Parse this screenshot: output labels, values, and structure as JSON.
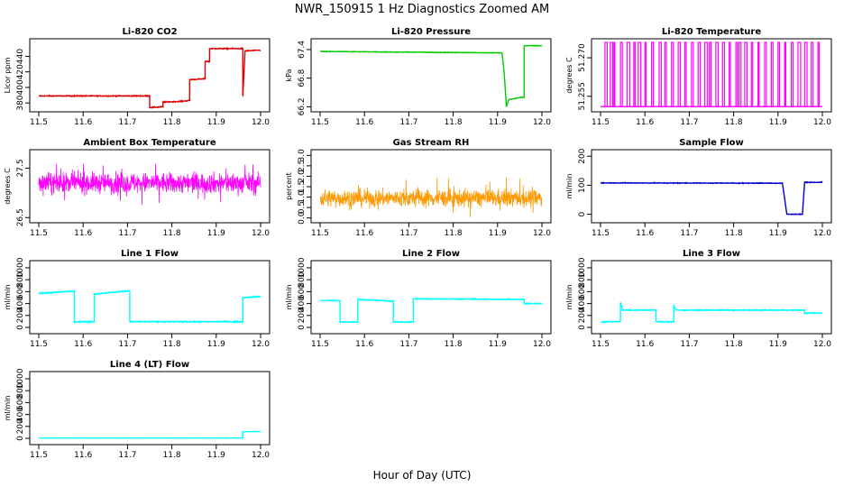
{
  "figure": {
    "title": "NWR_150915  1 Hz Diagnostics Zoomed AM",
    "xlabel": "Hour of Day (UTC)"
  },
  "chart_data": [
    {
      "type": "line",
      "title": "Li-820 CO2",
      "ylabel": "Licor ppm",
      "color": "#e00000",
      "xlim": [
        11.5,
        12.0
      ],
      "xticks": [
        "11.5",
        "11.6",
        "11.7",
        "11.8",
        "11.9",
        "12.0"
      ],
      "ylim": [
        372,
        458
      ],
      "yticks": [
        380,
        400,
        420,
        440
      ],
      "series": [
        {
          "x": [
            11.5,
            11.75,
            11.75,
            11.78,
            11.78,
            11.82,
            11.82,
            11.84,
            11.84,
            11.875,
            11.875,
            11.885,
            11.885,
            11.96,
            11.96,
            11.965,
            11.965,
            12.0
          ],
          "y": [
            389,
            389,
            374,
            375,
            381,
            382,
            382,
            383,
            410,
            411,
            434,
            433,
            450,
            450,
            388,
            448,
            447,
            448
          ],
          "noise": 1.0
        }
      ]
    },
    {
      "type": "line",
      "title": "Li-820 Pressure",
      "ylabel": "kPa",
      "color": "#00cc00",
      "xlim": [
        11.5,
        12.0
      ],
      "xticks": [
        "11.5",
        "11.6",
        "11.7",
        "11.8",
        "11.9",
        "12.0"
      ],
      "ylim": [
        66.15,
        67.55
      ],
      "yticks": [
        66.2,
        66.8,
        67.4
      ],
      "ytick_labels": [
        "66.2",
        "66.8",
        "67.4"
      ],
      "series": [
        {
          "x": [
            11.5,
            11.91,
            11.915,
            11.92,
            11.925,
            11.955,
            11.96,
            11.96,
            12.0
          ],
          "y": [
            67.36,
            67.33,
            66.9,
            66.2,
            66.35,
            66.4,
            66.4,
            67.48,
            67.48
          ],
          "noise": 0.01
        }
      ]
    },
    {
      "type": "spikes",
      "title": "Li-820 Temperature",
      "ylabel": "degrees C",
      "color": "#ff00ff",
      "xlim": [
        11.5,
        12.0
      ],
      "xticks": [
        "11.5",
        "11.6",
        "11.7",
        "11.8",
        "11.9",
        "12.0"
      ],
      "ylim": [
        51.25,
        51.276
      ],
      "yticks": [
        51.255,
        51.27
      ],
      "ytick_labels": [
        "51.255",
        "51.270"
      ],
      "base": 51.251,
      "top": 51.276,
      "spike_x": [
        11.51,
        11.522,
        11.53,
        11.545,
        11.56,
        11.575,
        11.585,
        11.6,
        11.615,
        11.632,
        11.645,
        11.66,
        11.675,
        11.69,
        11.705,
        11.72,
        11.735,
        11.745,
        11.76,
        11.775,
        11.79,
        11.805,
        11.812,
        11.825,
        11.84,
        11.855,
        11.87,
        11.885,
        11.9,
        11.915,
        11.93,
        11.945,
        11.96,
        11.975,
        11.99
      ]
    },
    {
      "type": "noise",
      "title": "Ambient Box Temperature",
      "ylabel": "degrees C",
      "color": "#ff00ff",
      "xlim": [
        11.5,
        12.0
      ],
      "xticks": [
        "11.5",
        "11.6",
        "11.7",
        "11.8",
        "11.9",
        "12.0"
      ],
      "ylim": [
        26.45,
        27.8
      ],
      "yticks": [
        26.5,
        27.5
      ],
      "ytick_labels": [
        "26.5",
        "27.5"
      ],
      "center": 27.2,
      "amp": 0.22,
      "spike_amp": 0.45
    },
    {
      "type": "noise",
      "title": "Gas Stream RH",
      "ylabel": "percent",
      "color": "#ff9900",
      "xlim": [
        11.5,
        12.0
      ],
      "xticks": [
        "11.5",
        "11.6",
        "11.7",
        "11.8",
        "11.9",
        "12.0"
      ],
      "ylim": [
        -0.1,
        3.1
      ],
      "yticks": [
        0,
        0.5,
        1.0,
        1.5,
        2.0,
        2.5,
        3.0
      ],
      "ytick_labels": [
        "0.0",
        "0.5",
        "1.0",
        "1.5",
        "2.0",
        "2.5",
        "3.0"
      ],
      "center": 0.95,
      "amp": 0.45,
      "spike_amp": 1.0
    },
    {
      "type": "line",
      "title": "Sample Flow",
      "ylabel": "ml/min",
      "color": "#0000cc",
      "xlim": [
        11.5,
        12.0
      ],
      "xticks": [
        "11.5",
        "11.6",
        "11.7",
        "11.8",
        "11.9",
        "12.0"
      ],
      "ylim": [
        -20,
        210
      ],
      "yticks": [
        0,
        100,
        200
      ],
      "series": [
        {
          "x": [
            11.5,
            11.91,
            11.92,
            11.955,
            11.96,
            12.0
          ],
          "y": [
            108,
            107,
            0,
            0,
            110,
            110
          ],
          "noise": 2
        }
      ]
    },
    {
      "type": "line",
      "title": "Line 1 Flow",
      "ylabel": "ml/min",
      "color": "#00ffff",
      "xlim": [
        11.5,
        12.0
      ],
      "xticks": [
        "11.5",
        "11.6",
        "11.7",
        "11.8",
        "11.9",
        "12.0"
      ],
      "ylim": [
        -60,
        1060
      ],
      "yticks": [
        0,
        200,
        400,
        600,
        800,
        1000
      ],
      "series": [
        {
          "x": [
            11.5,
            11.58,
            11.58,
            11.625,
            11.625,
            11.705,
            11.705,
            11.96,
            11.96,
            12.0
          ],
          "y": [
            570,
            610,
            95,
            95,
            560,
            615,
            95,
            95,
            500,
            520
          ],
          "noise": 15
        }
      ]
    },
    {
      "type": "line",
      "title": "Line 2 Flow",
      "ylabel": "ml/min",
      "color": "#00ffff",
      "xlim": [
        11.5,
        12.0
      ],
      "xticks": [
        "11.5",
        "11.6",
        "11.7",
        "11.8",
        "11.9",
        "12.0"
      ],
      "ylim": [
        -60,
        1060
      ],
      "yticks": [
        0,
        200,
        400,
        600,
        800,
        1000
      ],
      "series": [
        {
          "x": [
            11.5,
            11.545,
            11.545,
            11.585,
            11.585,
            11.665,
            11.665,
            11.71,
            11.71,
            11.96,
            11.96,
            12.0
          ],
          "y": [
            450,
            450,
            90,
            90,
            470,
            440,
            90,
            90,
            480,
            470,
            400,
            400
          ],
          "noise": 12
        }
      ]
    },
    {
      "type": "line",
      "title": "Line 3 Flow",
      "ylabel": "ml/min",
      "color": "#00ffff",
      "xlim": [
        11.5,
        12.0
      ],
      "xticks": [
        "11.5",
        "11.6",
        "11.7",
        "11.8",
        "11.9",
        "12.0"
      ],
      "ylim": [
        -60,
        1060
      ],
      "yticks": [
        0,
        200,
        400,
        600,
        800,
        1000
      ],
      "series": [
        {
          "x": [
            11.5,
            11.545,
            11.545,
            11.55,
            11.625,
            11.625,
            11.665,
            11.665,
            11.67,
            11.96,
            11.96,
            12.0
          ],
          "y": [
            90,
            100,
            420,
            290,
            290,
            95,
            95,
            370,
            290,
            290,
            240,
            240
          ],
          "noise": 12
        }
      ]
    },
    {
      "type": "line",
      "title": "Line 4 (LT) Flow",
      "ylabel": "ml/min",
      "color": "#00ffff",
      "xlim": [
        11.5,
        12.0
      ],
      "xticks": [
        "11.5",
        "11.6",
        "11.7",
        "11.8",
        "11.9",
        "12.0"
      ],
      "ylim": [
        -60,
        1060
      ],
      "yticks": [
        0,
        200,
        400,
        600,
        800,
        1000
      ],
      "series": [
        {
          "x": [
            11.5,
            11.96,
            11.96,
            12.0
          ],
          "y": [
            5,
            5,
            110,
            115
          ],
          "noise": 3
        }
      ]
    }
  ]
}
